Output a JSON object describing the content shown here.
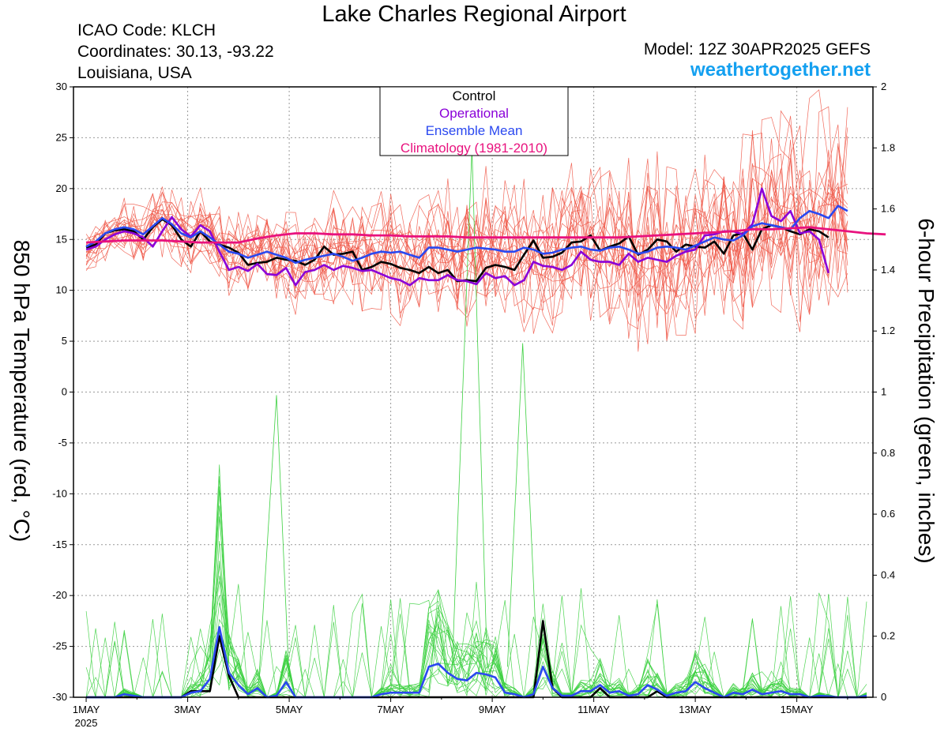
{
  "header": {
    "title": "Lake Charles Regional Airport",
    "icao": "ICAO Code: KLCH",
    "coordinates": "Coordinates: 30.13, -93.22",
    "region": "Louisiana, USA",
    "model": "Model: 12Z 30APR2025 GEFS",
    "site": "weathertogether.net"
  },
  "colors": {
    "control": "#000000",
    "operational": "#8a00d8",
    "ensemble_mean": "#2a48f0",
    "climatology": "#e8127e",
    "temp_members": "#f05a4a",
    "precip_members": "#3cd040",
    "site": "#14a0f0"
  },
  "chart_data": {
    "type": "line",
    "ylabel": "850 hPa Temperature (red, °C)",
    "y2label": "6-hour Precipitation (green, inches)",
    "ylim": [
      -30,
      30
    ],
    "y2lim": [
      0,
      2
    ],
    "yticks": [
      30,
      25,
      20,
      15,
      10,
      5,
      0,
      -5,
      -10,
      -15,
      -20,
      -25,
      -30
    ],
    "y2ticks": [
      2,
      1.8,
      1.6,
      1.4,
      1.2,
      1,
      0.8,
      0.6,
      0.4,
      0.2,
      0
    ],
    "xticks": [
      "1MAY",
      "3MAY",
      "5MAY",
      "7MAY",
      "9MAY",
      "11MAY",
      "13MAY",
      "15MAY"
    ],
    "xtick_sub": "2025",
    "xlim_days": [
      -0.25,
      15.5
    ],
    "grid": true,
    "legend_position": "top-center",
    "legend": [
      {
        "label": "Control",
        "color": "#000000"
      },
      {
        "label": "Operational",
        "color": "#8a00d8"
      },
      {
        "label": "Ensemble Mean",
        "color": "#2a48f0"
      },
      {
        "label": "Climatology (1981-2010)",
        "color": "#e8127e"
      }
    ],
    "temperature_series": [
      {
        "name": "Control",
        "color": "#000000",
        "values": [
          14.2,
          14.5,
          15.6,
          15.9,
          16.0,
          15.8,
          15.0,
          16.2,
          17.0,
          16.4,
          15.0,
          14.3,
          15.8,
          14.8,
          14.5,
          14.2,
          13.7,
          12.5,
          12.7,
          12.8,
          13.2,
          13.0,
          12.9,
          12.5,
          13.0,
          14.3,
          13.5,
          13.6,
          13.8,
          12.0,
          12.3,
          12.8,
          12.6,
          12.2,
          12.0,
          11.7,
          12.3,
          11.7,
          12.0,
          10.9,
          11.0,
          10.9,
          12.2,
          12.5,
          12.3,
          12.0,
          13.5,
          14.9,
          13.2,
          13.3,
          13.7,
          14.7,
          14.8,
          15.4,
          13.9,
          14.3,
          14.6,
          15.3,
          13.5,
          14.0,
          15.0,
          14.8,
          13.8,
          14.5,
          14.3,
          14.2,
          14.8,
          13.6,
          15.4,
          15.6,
          14.0,
          16.0,
          16.4,
          16.2,
          15.8,
          15.5,
          16.0,
          15.8,
          15.2
        ]
      },
      {
        "name": "Operational",
        "color": "#8a00d8",
        "values": [
          14.0,
          14.3,
          15.0,
          15.5,
          15.8,
          15.6,
          15.2,
          14.3,
          15.8,
          17.2,
          16.0,
          15.3,
          16.4,
          15.8,
          13.8,
          12.0,
          12.3,
          11.9,
          12.6,
          11.6,
          11.5,
          12.2,
          10.5,
          11.8,
          12.0,
          12.5,
          12.0,
          12.4,
          12.2,
          11.9,
          12.0,
          11.6,
          11.2,
          11.0,
          10.5,
          11.2,
          11.0,
          11.0,
          11.5,
          11.0,
          10.9,
          10.6,
          11.7,
          11.2,
          11.4,
          10.5,
          11.0,
          12.8,
          12.4,
          12.3,
          12.0,
          12.5,
          13.8,
          13.0,
          12.8,
          12.8,
          12.5,
          13.6,
          12.8,
          13.2,
          13.0,
          12.8,
          13.4,
          13.8,
          14.0,
          15.4,
          15.5,
          15.8,
          15.8,
          15.5,
          16.5,
          20.0,
          17.3,
          16.8,
          17.8,
          15.6,
          15.8,
          15.0,
          11.7
        ]
      },
      {
        "name": "Ensemble Mean",
        "color": "#2a48f0",
        "values": [
          14.3,
          14.8,
          15.6,
          16.0,
          16.2,
          16.0,
          15.5,
          16.3,
          17.1,
          16.5,
          15.6,
          15.2,
          15.8,
          15.2,
          14.5,
          13.8,
          13.6,
          13.2,
          13.5,
          13.8,
          13.5,
          13.2,
          12.7,
          13.0,
          13.2,
          13.4,
          13.6,
          13.3,
          12.9,
          13.2,
          13.6,
          13.8,
          13.7,
          13.8,
          13.5,
          13.2,
          14.2,
          14.2,
          14.0,
          13.8,
          14.0,
          14.2,
          14.1,
          14.0,
          13.8,
          13.8,
          14.2,
          14.0,
          13.6,
          13.7,
          14.0,
          14.2,
          14.3,
          14.0,
          13.9,
          14.2,
          14.3,
          14.0,
          13.6,
          13.8,
          14.2,
          14.3,
          14.2,
          14.0,
          14.4,
          14.8,
          15.2,
          15.0,
          14.9,
          15.4,
          16.3,
          16.6,
          16.4,
          16.2,
          16.0,
          17.1,
          17.8,
          17.5,
          17.1,
          18.3,
          17.8
        ]
      },
      {
        "name": "Climatology (1981-2010)",
        "color": "#e8127e",
        "values": [
          14.7,
          14.8,
          14.9,
          14.9,
          14.9,
          14.8,
          14.7,
          14.7,
          14.7,
          15.1,
          15.4,
          15.6,
          15.6,
          15.5,
          15.5,
          15.4,
          15.4,
          15.3,
          15.3,
          15.3,
          15.2,
          15.2,
          15.2,
          15.2,
          15.2,
          15.2,
          15.2,
          15.2,
          15.2,
          15.3,
          15.4,
          15.5,
          15.6,
          15.7,
          15.8,
          16.0,
          16.0,
          16.1,
          16.2,
          16.0,
          15.8,
          15.6,
          15.5
        ]
      }
    ],
    "precipitation_series": [
      {
        "name": "Control",
        "color": "#000000",
        "values": [
          0,
          0,
          0,
          0,
          0,
          0,
          0,
          0,
          0,
          0,
          0,
          0.02,
          0.02,
          0.02,
          0.2,
          0.07,
          0,
          0,
          0,
          0,
          0,
          0,
          0,
          0,
          0,
          0,
          0,
          0,
          0,
          0,
          0,
          0,
          0,
          0,
          0,
          0,
          0,
          0,
          0,
          0,
          0,
          0,
          0,
          0,
          0,
          0,
          0,
          0,
          0.25,
          0.03,
          0,
          0,
          0,
          0,
          0.03,
          0,
          0,
          0,
          0,
          0,
          0.02,
          0,
          0,
          0,
          0,
          0,
          0,
          0,
          0,
          0,
          0,
          0,
          0,
          0,
          0,
          0,
          0,
          0,
          0,
          0,
          0,
          0,
          0
        ]
      },
      {
        "name": "Ensemble Mean",
        "color": "#2a48f0",
        "values": [
          0,
          0,
          0,
          0,
          0.01,
          0.005,
          0,
          0,
          0,
          0,
          0,
          0.015,
          0.02,
          0.06,
          0.23,
          0.08,
          0.04,
          0.01,
          0.03,
          0,
          0.005,
          0.05,
          0,
          0,
          0,
          0,
          0,
          0,
          0,
          0,
          0,
          0.01,
          0.015,
          0.015,
          0.015,
          0.015,
          0.1,
          0.11,
          0.08,
          0.06,
          0.055,
          0.08,
          0.075,
          0.065,
          0.015,
          0.01,
          0,
          0.01,
          0.1,
          0.03,
          0.005,
          0.005,
          0.02,
          0.02,
          0.04,
          0.015,
          0.02,
          0.005,
          0.01,
          0.04,
          0.025,
          0.005,
          0.015,
          0.02,
          0.05,
          0.03,
          0.015,
          0,
          0.015,
          0.01,
          0.025,
          0.01,
          0.015,
          0.02,
          0.01,
          0.01,
          0,
          0.005,
          0.003,
          0,
          0,
          0,
          0.005
        ]
      }
    ]
  }
}
